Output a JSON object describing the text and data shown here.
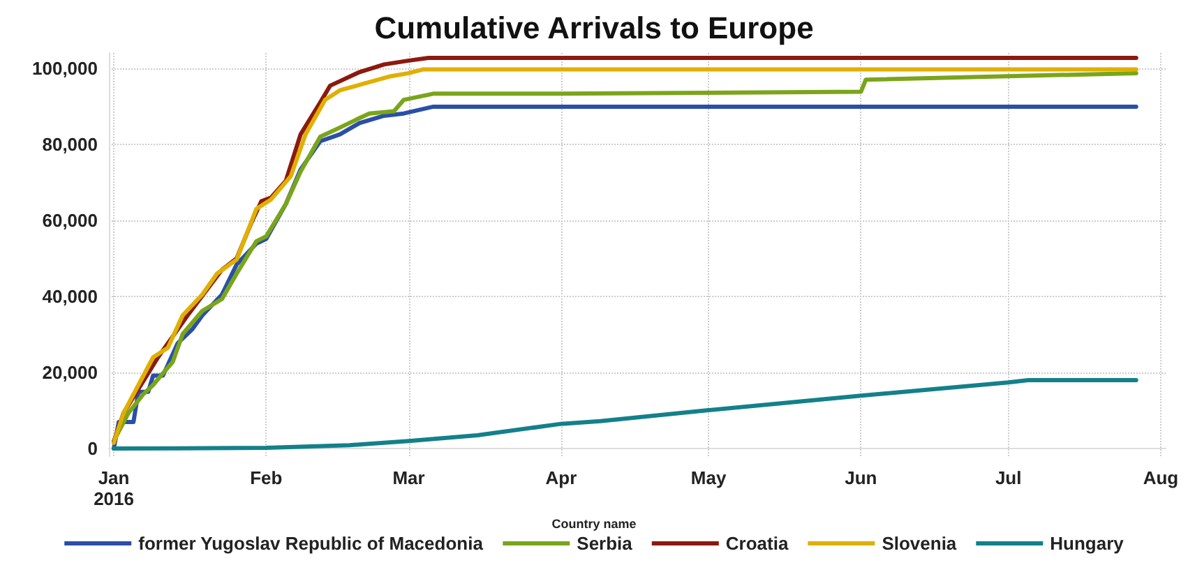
{
  "chart_data": {
    "type": "line",
    "title": "Cumulative Arrivals to Europe",
    "legend_title": "Country name",
    "xlim": [
      "2015-12-31",
      "2016-08-02"
    ],
    "xticks": [
      {
        "value": "2016-01-01",
        "label": "Jan\n2016"
      },
      {
        "value": "2016-02-01",
        "label": "Feb"
      },
      {
        "value": "2016-03-01",
        "label": "Mar"
      },
      {
        "value": "2016-04-01",
        "label": "Apr"
      },
      {
        "value": "2016-05-01",
        "label": "May"
      },
      {
        "value": "2016-06-01",
        "label": "Jun"
      },
      {
        "value": "2016-07-01",
        "label": "Jul"
      },
      {
        "value": "2016-08-01",
        "label": "Aug"
      }
    ],
    "ylim": [
      -2000,
      104000
    ],
    "yticks": [
      {
        "value": 0,
        "label": "0"
      },
      {
        "value": 20000,
        "label": "20,000"
      },
      {
        "value": 40000,
        "label": "40,000"
      },
      {
        "value": 60000,
        "label": "60,000"
      },
      {
        "value": 80000,
        "label": "80,000"
      },
      {
        "value": 100000,
        "label": "100,000"
      }
    ],
    "grid": true,
    "legend": "bottom",
    "marker": "none",
    "line_style": "solid",
    "series": [
      {
        "name": "former Yugoslav Republic of Macedonia",
        "color": "#2a4fa8",
        "x": [
          "2016-01-01",
          "2016-01-02",
          "2016-01-05",
          "2016-01-06",
          "2016-01-08",
          "2016-01-09",
          "2016-01-11",
          "2016-01-14",
          "2016-01-17",
          "2016-01-19",
          "2016-01-23",
          "2016-01-26",
          "2016-01-30",
          "2016-02-01",
          "2016-02-05",
          "2016-02-08",
          "2016-02-12",
          "2016-02-16",
          "2016-02-20",
          "2016-02-25",
          "2016-02-29",
          "2016-03-06",
          "2016-07-27"
        ],
        "values": [
          0,
          7000,
          7000,
          14900,
          14900,
          19200,
          19200,
          27700,
          31400,
          35000,
          40500,
          48400,
          53900,
          55100,
          64300,
          73400,
          80800,
          82600,
          85600,
          87500,
          88100,
          89900,
          89900
        ]
      },
      {
        "name": "Serbia",
        "color": "#7aa51a",
        "x": [
          "2016-01-01",
          "2016-01-04",
          "2016-01-07",
          "2016-01-09",
          "2016-01-11",
          "2016-01-13",
          "2016-01-15",
          "2016-01-19",
          "2016-01-23",
          "2016-01-26",
          "2016-01-30",
          "2016-02-01",
          "2016-02-05",
          "2016-02-08",
          "2016-02-12",
          "2016-02-16",
          "2016-02-20",
          "2016-02-22",
          "2016-02-27",
          "2016-02-29",
          "2016-03-06",
          "2016-04-01",
          "2016-06-01",
          "2016-06-02",
          "2016-07-27"
        ],
        "values": [
          2000,
          9400,
          14300,
          16700,
          19800,
          22800,
          30100,
          36200,
          39300,
          46000,
          54500,
          55800,
          64300,
          72800,
          82000,
          84400,
          86900,
          88100,
          88700,
          91700,
          93300,
          93300,
          93800,
          97000,
          98700
        ]
      },
      {
        "name": "Croatia",
        "color": "#8b1a0e",
        "x": [
          "2016-01-01",
          "2016-01-03",
          "2016-01-10",
          "2016-01-16",
          "2016-01-23",
          "2016-01-26",
          "2016-01-29",
          "2016-01-31",
          "2016-02-02",
          "2016-02-05",
          "2016-02-08",
          "2016-02-12",
          "2016-02-14",
          "2016-02-16",
          "2016-02-20",
          "2016-02-25",
          "2016-03-01",
          "2016-03-05",
          "2016-07-27"
        ],
        "values": [
          1800,
          9400,
          24000,
          35000,
          47000,
          50000,
          59400,
          65000,
          66000,
          70400,
          82600,
          91000,
          95400,
          96600,
          99000,
          101000,
          102000,
          102700,
          102700
        ]
      },
      {
        "name": "Slovenia",
        "color": "#e0b000",
        "x": [
          "2016-01-01",
          "2016-01-03",
          "2016-01-09",
          "2016-01-12",
          "2016-01-15",
          "2016-01-19",
          "2016-01-22",
          "2016-01-26",
          "2016-01-30",
          "2016-02-02",
          "2016-02-06",
          "2016-02-09",
          "2016-02-13",
          "2016-02-16",
          "2016-02-21",
          "2016-02-26",
          "2016-03-01",
          "2016-03-04",
          "2016-07-27"
        ],
        "values": [
          1500,
          9400,
          24000,
          26500,
          35000,
          40500,
          46000,
          49700,
          63000,
          65500,
          71600,
          82600,
          91700,
          94200,
          96000,
          97800,
          98700,
          99700,
          99700
        ]
      },
      {
        "name": "Hungary",
        "color": "#13808a",
        "x": [
          "2016-01-01",
          "2016-02-01",
          "2016-02-18",
          "2016-03-01",
          "2016-03-15",
          "2016-04-01",
          "2016-04-09",
          "2016-05-01",
          "2016-06-01",
          "2016-07-01",
          "2016-07-05",
          "2016-07-27"
        ],
        "values": [
          0,
          200,
          900,
          2000,
          3500,
          6500,
          7200,
          10100,
          13900,
          17400,
          18000,
          18000
        ]
      }
    ]
  }
}
